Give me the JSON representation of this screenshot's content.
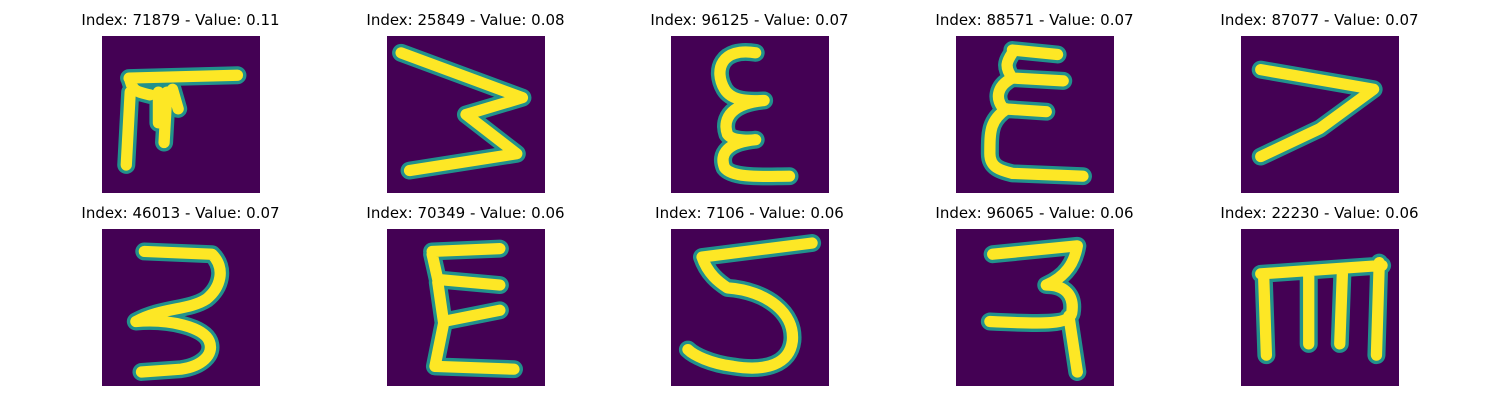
{
  "colors": {
    "background": "#440154",
    "stroke_core": "#fde725",
    "stroke_edge": "#21918c"
  },
  "grid": {
    "rows": 2,
    "cols": 5
  },
  "panels": [
    {
      "title": "Index: 71879 - Value: 0.11",
      "glyph": "F-like shape"
    },
    {
      "title": "Index: 25849 - Value: 0.08",
      "glyph": "rotated m"
    },
    {
      "title": "Index: 96125 - Value: 0.07",
      "glyph": "epsilon"
    },
    {
      "title": "Index: 88571 - Value: 0.07",
      "glyph": "sigma-like E"
    },
    {
      "title": "Index: 87077 - Value: 0.07",
      "glyph": "7"
    },
    {
      "title": "Index: 46013 - Value: 0.07",
      "glyph": "3"
    },
    {
      "title": "Index: 70349 - Value: 0.06",
      "glyph": "E"
    },
    {
      "title": "Index: 7106 - Value: 0.06",
      "glyph": "5"
    },
    {
      "title": "Index: 96065 - Value: 0.06",
      "glyph": "tailed 2"
    },
    {
      "title": "Index: 22230 - Value: 0.06",
      "glyph": "m"
    }
  ]
}
